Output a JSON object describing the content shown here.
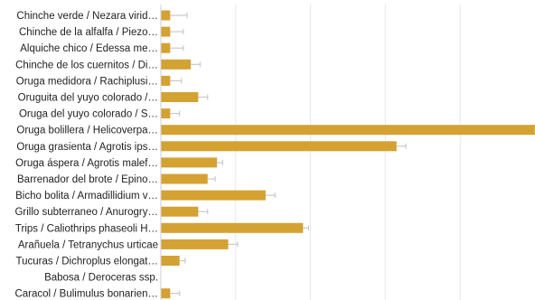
{
  "chart_data": {
    "type": "bar",
    "orientation": "horizontal",
    "title": "",
    "xlabel": "",
    "ylabel": "",
    "grid": true,
    "legend": "none",
    "xlim": [
      0,
      100
    ],
    "categories": [
      "Chinche verde / Nezara virid…",
      "Chinche de la alfalfa / Piezo…",
      "Alquiche chico / Edessa me…",
      "Chinche de los cuernitos / Di…",
      "Oruga medidora / Rachiplusi…",
      "Oruguita del yuyo colorado /…",
      "Oruga del yuyo colorado / S…",
      "Oruga bolillera / Helicoverpa…",
      "Oruga grasienta / Agrotis ips…",
      "Oruga áspera / Agrotis malef…",
      "Barrenador del brote / Epino…",
      "Bicho bolita / Armadillidium v…",
      "Grillo subterraneo / Anurogry…",
      "Trips / Caliothrips phaseoli H…",
      "Arañuela / Tetranychus urticae",
      "Tucuras / Dichroplus elongat…",
      "Babosa / Deroceras ssp.",
      "Caracol / Bulimulus bonarien…"
    ],
    "values": [
      2.5,
      2.5,
      2.5,
      8,
      2.5,
      10,
      2.5,
      100,
      63,
      15,
      12.5,
      28,
      10,
      38,
      18,
      5,
      0,
      2.5
    ],
    "errors": [
      4.5,
      3.5,
      3.5,
      2.5,
      3,
      2.5,
      2.5,
      1.5,
      2.5,
      1.5,
      2,
      2.5,
      2.5,
      1.5,
      2.5,
      1.5,
      0,
      2.5
    ],
    "colors": {
      "bar": "#d4a233",
      "grid": "#e8e8e8",
      "error": "#c9c9c9"
    }
  }
}
